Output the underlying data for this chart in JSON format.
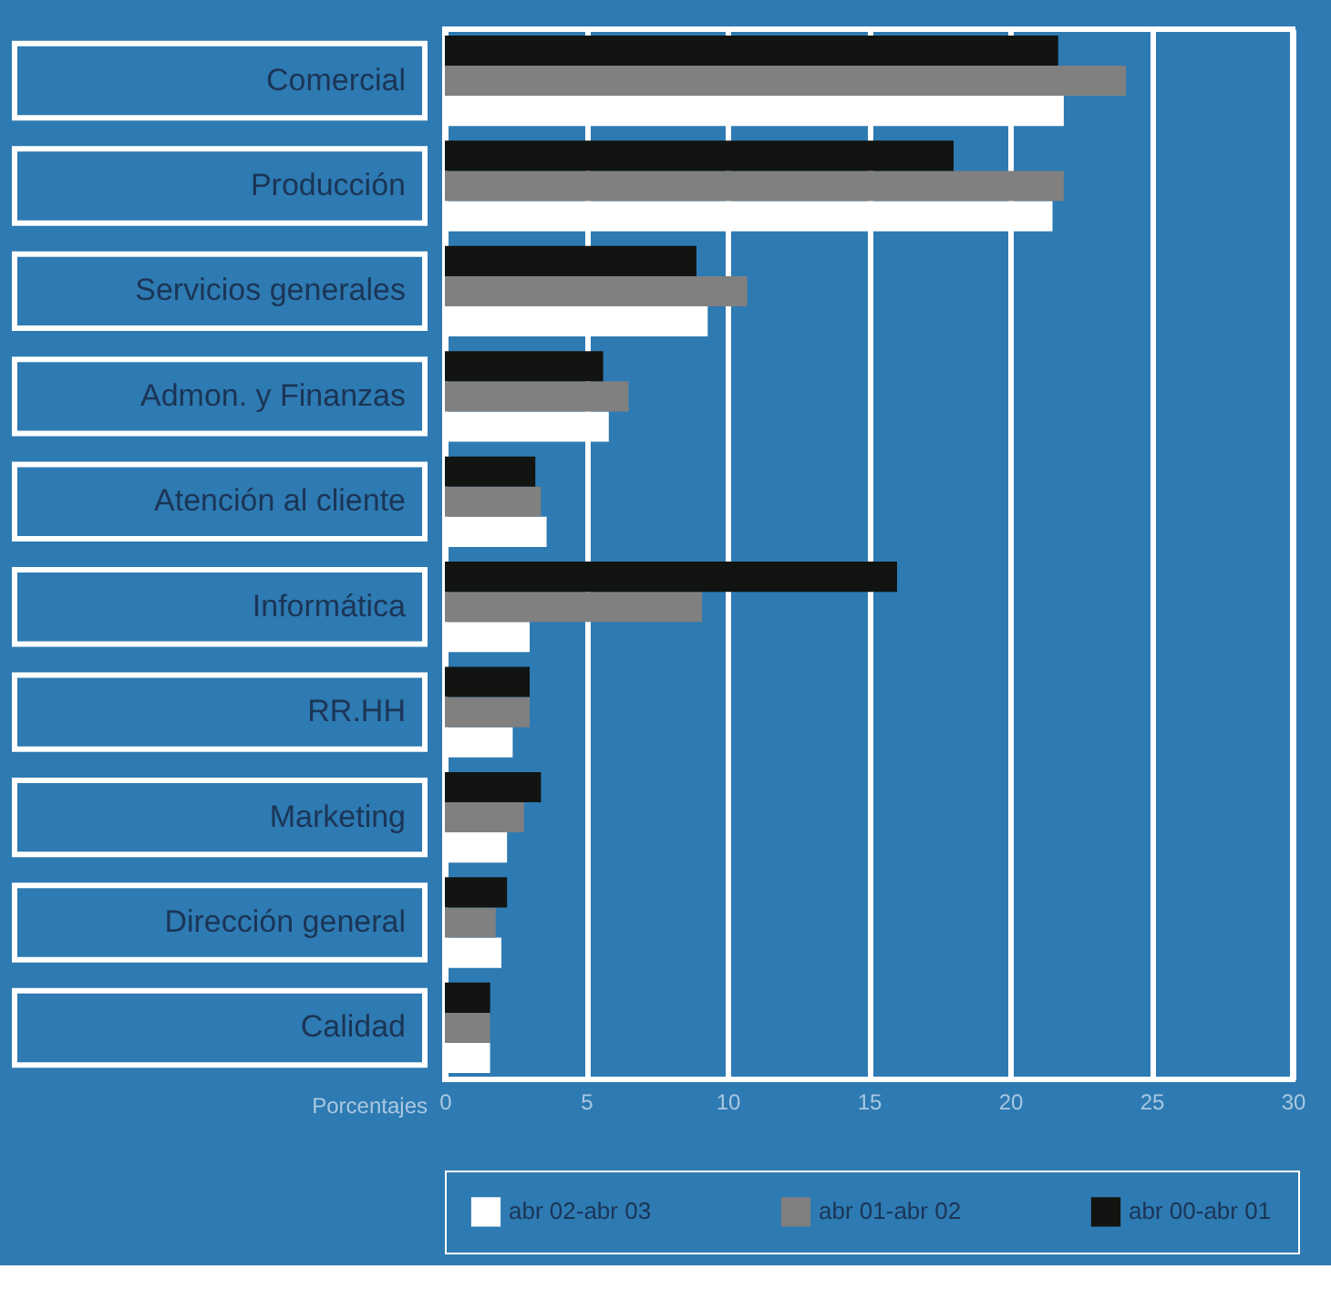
{
  "chart_data": {
    "type": "bar",
    "orientation": "horizontal",
    "categories": [
      "Comercial",
      "Producción",
      "Servicios generales",
      "Admon. y Finanzas",
      "Atención al cliente",
      "Informática",
      "RR.HH",
      "Marketing",
      "Dirección general",
      "Calidad"
    ],
    "series": [
      {
        "name": "abr 02-abr 03",
        "color": "#ffffff",
        "values": [
          21.9,
          21.5,
          9.3,
          5.8,
          3.6,
          3.0,
          2.4,
          2.2,
          2.0,
          1.6
        ]
      },
      {
        "name": "abr 01-abr 02",
        "color": "#808080",
        "values": [
          24.1,
          21.9,
          10.7,
          6.5,
          3.4,
          9.1,
          3.0,
          2.8,
          1.8,
          1.6
        ]
      },
      {
        "name": "abr 00-abr 01",
        "color": "#111410",
        "values": [
          21.7,
          18.0,
          8.9,
          5.6,
          3.2,
          16.0,
          3.0,
          3.4,
          2.2,
          1.6
        ]
      }
    ],
    "xlabel": "Porcentajes",
    "xlim": [
      0,
      30
    ],
    "xticks": [
      0,
      5,
      10,
      15,
      20,
      25,
      30
    ],
    "grid": "x",
    "legend": "bottom"
  }
}
